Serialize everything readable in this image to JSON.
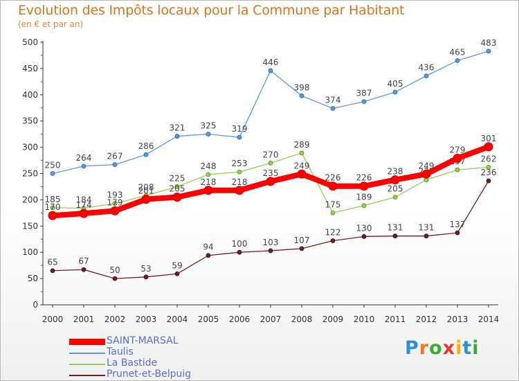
{
  "title": "Evolution des Impôts locaux pour la Commune par Habitant",
  "subtitle": "(en € et par an)",
  "logo": {
    "letters": [
      "P",
      "r",
      "o",
      "x",
      "i",
      "t",
      "i"
    ],
    "colors": [
      "#2f8fd6",
      "#f07820",
      "#3aaa35",
      "#e23b2e",
      "#f7b500",
      "#2f8fd6",
      "#3aaa35"
    ]
  },
  "chart_data": {
    "type": "line",
    "x": [
      2000,
      2001,
      2002,
      2003,
      2004,
      2005,
      2006,
      2007,
      2008,
      2009,
      2010,
      2011,
      2012,
      2013,
      2014
    ],
    "ylim": [
      0,
      500
    ],
    "yticks": [
      0,
      50,
      100,
      150,
      200,
      250,
      300,
      350,
      400,
      450,
      500
    ],
    "grid": false,
    "legend_position": "bottom-left",
    "series": [
      {
        "name": "Taulis",
        "color": "#5b9bd5",
        "values": [
          250,
          264,
          267,
          286,
          321,
          325,
          319,
          446,
          398,
          374,
          387,
          405,
          436,
          465,
          483
        ]
      },
      {
        "name": "La Bastide",
        "color": "#92d050",
        "values": [
          185,
          184,
          193,
          208,
          225,
          248,
          253,
          270,
          289,
          175,
          189,
          205,
          238,
          257,
          262
        ]
      },
      {
        "name": "Prunet-et-Belpuig",
        "color": "#6b1f24",
        "values": [
          65,
          67,
          50,
          53,
          59,
          94,
          100,
          103,
          107,
          122,
          130,
          131,
          131,
          137,
          236
        ]
      },
      {
        "name": "SAINT-MARSAL",
        "color": "#ff0000",
        "values": [
          170,
          174,
          179,
          201,
          205,
          218,
          218,
          235,
          249,
          226,
          226,
          238,
          249,
          279,
          301
        ]
      }
    ],
    "labels": {
      "Taulis": [
        "250",
        "264",
        "267",
        "286",
        "321",
        "325",
        "319",
        "446",
        "398",
        "374",
        "387",
        "405",
        "436",
        "465",
        "483"
      ],
      "La Bastide": [
        "185",
        "184",
        "193",
        "208",
        "225",
        "248",
        "253",
        "270",
        "289",
        "175",
        "189",
        "205",
        "238",
        "257",
        "262"
      ],
      "Prunet-et-Belpuig": [
        "65",
        "67",
        "50",
        "53",
        "59",
        "94",
        "100",
        "103",
        "107",
        "122",
        "130",
        "131",
        "131",
        "137",
        "236"
      ],
      "SAINT-MARSAL": [
        "170",
        "174",
        "179",
        "201",
        "205",
        "218",
        "218",
        "235",
        "249",
        "226",
        "226",
        "238",
        "249",
        "279",
        "301"
      ]
    }
  },
  "legend": [
    {
      "label": "SAINT-MARSAL",
      "color": "#ff0000",
      "thick": true
    },
    {
      "label": "Taulis",
      "color": "#5b9bd5",
      "thick": false
    },
    {
      "label": "La Bastide",
      "color": "#92d050",
      "thick": false
    },
    {
      "label": "Prunet-et-Belpuig",
      "color": "#6b1f24",
      "thick": false
    }
  ]
}
